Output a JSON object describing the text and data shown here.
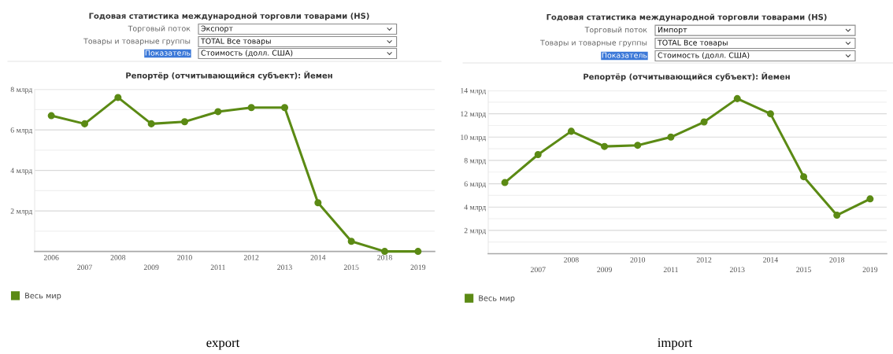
{
  "chart_data": [
    {
      "type": "line",
      "title": "Годовая статистика международной торговли товарами (HS)",
      "subtitle": "Репортёр (отчитывающийся субъект): Йемен",
      "categories": [
        "2006",
        "2007",
        "2008",
        "2009",
        "2010",
        "2011",
        "2012",
        "2013",
        "2014",
        "2015",
        "2018",
        "2019"
      ],
      "series": [
        {
          "name": "Весь мир",
          "color": "#5b8a14",
          "values": [
            6.7,
            6.3,
            7.6,
            6.3,
            6.4,
            6.9,
            7.1,
            7.1,
            2.4,
            0.5,
            0.0,
            0.0
          ]
        }
      ],
      "ylim": [
        0,
        8
      ],
      "yticks": [
        {
          "value": 0,
          "label": null
        },
        {
          "value": 1,
          "label": null
        },
        {
          "value": 2,
          "label": "2 млрд"
        },
        {
          "value": 3,
          "label": null
        },
        {
          "value": 4,
          "label": "4 млрд"
        },
        {
          "value": 5,
          "label": null
        },
        {
          "value": 6,
          "label": "6 млрд"
        },
        {
          "value": 7,
          "label": null
        },
        {
          "value": 8,
          "label": "8 млрд"
        }
      ],
      "grid": "y",
      "legend": "bottom left",
      "marker": "circle",
      "line_style": "solid",
      "annotations": [
        "Торговый поток",
        "Экспорт",
        "Товары и товарные группы",
        "TOTAL Все товары",
        "Показатель",
        "Стоимость (долл. США)",
        "export"
      ]
    },
    {
      "type": "line",
      "title": "Годовая статистика международной торговли товарами (HS)",
      "subtitle": "Репортёр (отчитывающийся субъект): Йемен",
      "categories": [
        null,
        "2007",
        "2008",
        "2009",
        "2010",
        "2011",
        "2012",
        "2013",
        "2014",
        "2015",
        "2018",
        "2019"
      ],
      "series": [
        {
          "name": "Весь мир",
          "color": "#5b8a14",
          "values": [
            6.1,
            8.5,
            10.5,
            9.2,
            9.3,
            10.0,
            11.3,
            13.3,
            12.0,
            6.6,
            3.3,
            4.7
          ]
        }
      ],
      "ylim": [
        0,
        14
      ],
      "yticks": [
        {
          "value": 0,
          "label": null
        },
        {
          "value": 1,
          "label": null
        },
        {
          "value": 2,
          "label": "2 млрд"
        },
        {
          "value": 3,
          "label": null
        },
        {
          "value": 4,
          "label": "4 млрд"
        },
        {
          "value": 5,
          "label": null
        },
        {
          "value": 6,
          "label": "6 млрд"
        },
        {
          "value": 7,
          "label": null
        },
        {
          "value": 8,
          "label": "8 млрд"
        },
        {
          "value": 9,
          "label": null
        },
        {
          "value": 10,
          "label": "10 млрд"
        },
        {
          "value": 11,
          "label": null
        },
        {
          "value": 12,
          "label": "12 млрд"
        },
        {
          "value": 13,
          "label": null
        },
        {
          "value": 14,
          "label": "14 млрд"
        }
      ],
      "grid": "y",
      "legend": "bottom left",
      "marker": "circle",
      "line_style": "solid",
      "annotations": [
        "Торговый поток",
        "Импорт",
        "Товары и товарные группы",
        "TOTAL Все товары",
        "Показатель",
        "Стоимость (долл. США)",
        "import"
      ]
    }
  ]
}
